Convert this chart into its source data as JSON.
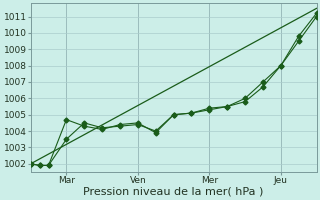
{
  "xlabel": "Pression niveau de la mer( hPa )",
  "bg_color": "#cceee8",
  "grid_color": "#aacccc",
  "line_color": "#1a5c1a",
  "ylim": [
    1001.5,
    1011.8
  ],
  "xlim": [
    0,
    96
  ],
  "xtick_positions": [
    12,
    36,
    60,
    84
  ],
  "xtick_labels": [
    "Mar",
    "Ven",
    "Mer",
    "Jeu"
  ],
  "ytick_positions": [
    1002,
    1003,
    1004,
    1005,
    1006,
    1007,
    1008,
    1009,
    1010,
    1011
  ],
  "series1_x": [
    0,
    3,
    6,
    12,
    18,
    24,
    30,
    36,
    42,
    48,
    54,
    60,
    66,
    72,
    78,
    84,
    90,
    96
  ],
  "series1_y": [
    1002.0,
    1001.9,
    1001.9,
    1004.7,
    1004.3,
    1004.1,
    1004.4,
    1004.5,
    1003.9,
    1005.0,
    1005.1,
    1005.4,
    1005.5,
    1005.8,
    1006.7,
    1008.0,
    1009.8,
    1011.2
  ],
  "series2_x": [
    0,
    3,
    6,
    12,
    18,
    24,
    30,
    36,
    42,
    48,
    54,
    60,
    66,
    72,
    78,
    84,
    90,
    96
  ],
  "series2_y": [
    1002.0,
    1001.9,
    1001.9,
    1003.5,
    1004.5,
    1004.2,
    1004.3,
    1004.4,
    1004.0,
    1005.0,
    1005.1,
    1005.3,
    1005.5,
    1006.0,
    1007.0,
    1008.0,
    1009.5,
    1011.0
  ],
  "series3_x": [
    0,
    96
  ],
  "series3_y": [
    1002.0,
    1011.5
  ],
  "vline_positions": [
    12,
    36,
    60,
    84
  ],
  "xlabel_fontsize": 8,
  "tick_fontsize": 6.5
}
